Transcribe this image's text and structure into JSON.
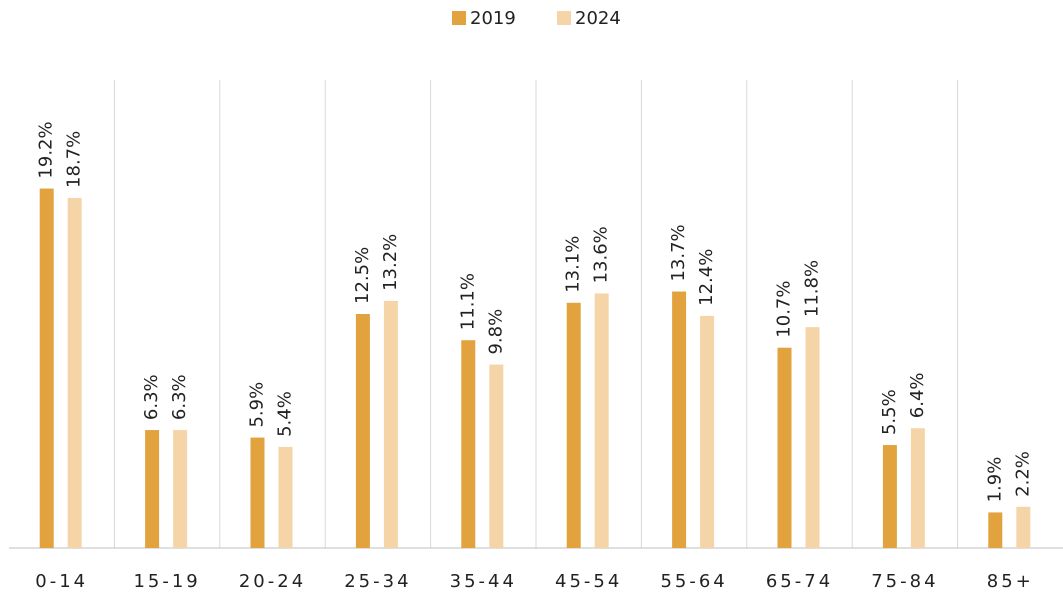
{
  "chart_data": {
    "type": "bar",
    "categories": [
      "0-14",
      "15-19",
      "20-24",
      "25-34",
      "35-44",
      "45-54",
      "55-64",
      "65-74",
      "75-84",
      "85+"
    ],
    "series": [
      {
        "name": "2019",
        "color": "#e2a23e",
        "values": [
          19.2,
          6.3,
          5.9,
          12.5,
          11.1,
          13.1,
          13.7,
          10.7,
          5.5,
          1.9
        ],
        "value_labels": [
          "19.2%",
          "6.3%",
          "5.9%",
          "12.5%",
          "11.1%",
          "13.1%",
          "13.7%",
          "10.7%",
          "5.5%",
          "1.9%"
        ]
      },
      {
        "name": "2024",
        "color": "#f5d5a8",
        "values": [
          18.7,
          6.3,
          5.4,
          13.2,
          9.8,
          13.6,
          12.4,
          11.8,
          6.4,
          2.2
        ],
        "value_labels": [
          "18.7%",
          "6.3%",
          "5.4%",
          "13.2%",
          "9.8%",
          "13.6%",
          "12.4%",
          "11.8%",
          "6.4%",
          "2.2%"
        ]
      }
    ],
    "ylim": [
      0,
      25
    ],
    "legend": "top"
  }
}
